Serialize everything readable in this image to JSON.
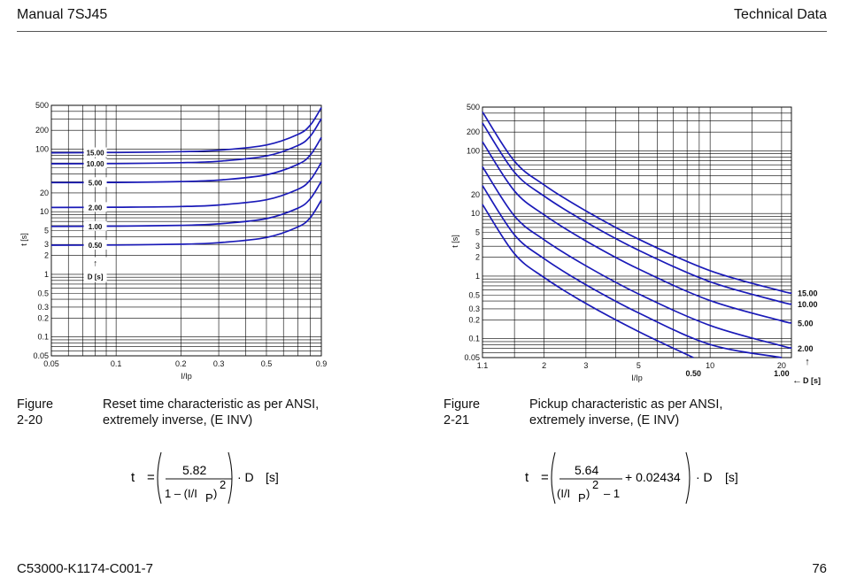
{
  "header": {
    "left": "Manual 7SJ45",
    "right": "Technical Data"
  },
  "footer": {
    "left": "C53000-K1174-C001-7",
    "right": "76"
  },
  "figure_left": {
    "number": "Figure 2-20",
    "caption_line1": "Reset time characteristic as per ANSI,",
    "caption_line2": "extremely inverse, (E INV)",
    "formula": {
      "t": "t",
      "eq": "=",
      "numerator": "5.82",
      "den_a": "1 – (I/I",
      "den_sub": "P",
      "den_close": ")",
      "exp": "2",
      "tail": "· D",
      "unit": "[s]"
    }
  },
  "figure_right": {
    "number": "Figure 2-21",
    "caption_line1": "Pickup characteristic as per ANSI,",
    "caption_line2": "extremely inverse, (E INV)",
    "formula": {
      "t": "t",
      "eq": "=",
      "numerator": "5.64",
      "den_a": "(I/I",
      "den_sub": "P",
      "den_close": ")",
      "exp": "2",
      "den_b": "– 1",
      "plus": "+ 0.02434",
      "tail": "· D",
      "unit": "[s]"
    }
  },
  "chart_data": [
    {
      "type": "line",
      "xlabel": "I/Ip",
      "ylabel": "t [s]",
      "x_scale": "log",
      "y_scale": "log",
      "xlim": [
        0.05,
        0.9
      ],
      "ylim": [
        0.05,
        500
      ],
      "x_ticks": [
        "0.05",
        "0.1",
        "0.2",
        "0.3",
        "0.5",
        "0.9"
      ],
      "y_ticks": [
        "500",
        "200",
        "100",
        "20",
        "10",
        "5",
        "3",
        "2",
        "1",
        "0.5",
        "0.3",
        "0.2",
        "0.1",
        "0.05"
      ],
      "parameter_label": "D [s]",
      "parameter_arrow": "↑",
      "series": [
        {
          "name": "15.00",
          "D": 15.0,
          "x": [
            0.05,
            0.1,
            0.2,
            0.3,
            0.5,
            0.7,
            0.8,
            0.9
          ],
          "y": [
            87.5,
            88.2,
            91.0,
            95.9,
            116.4,
            171.2,
            242.5,
            459.5
          ]
        },
        {
          "name": "10.00",
          "D": 10.0,
          "x": [
            0.05,
            0.1,
            0.2,
            0.3,
            0.5,
            0.7,
            0.8,
            0.9
          ],
          "y": [
            58.4,
            58.8,
            60.6,
            64.0,
            77.6,
            114.1,
            161.7,
            306.3
          ]
        },
        {
          "name": "5.00",
          "D": 5.0,
          "x": [
            0.05,
            0.1,
            0.2,
            0.3,
            0.5,
            0.7,
            0.8,
            0.9
          ],
          "y": [
            29.2,
            29.4,
            30.3,
            32.0,
            38.8,
            57.1,
            80.8,
            153.2
          ]
        },
        {
          "name": "2.00",
          "D": 2.0,
          "x": [
            0.05,
            0.1,
            0.2,
            0.3,
            0.5,
            0.7,
            0.8,
            0.9
          ],
          "y": [
            11.7,
            11.8,
            12.1,
            12.8,
            15.5,
            22.8,
            32.3,
            61.3
          ]
        },
        {
          "name": "1.00",
          "D": 1.0,
          "x": [
            0.05,
            0.1,
            0.2,
            0.3,
            0.5,
            0.7,
            0.8,
            0.9
          ],
          "y": [
            5.83,
            5.88,
            6.06,
            6.4,
            7.76,
            11.4,
            16.2,
            30.6
          ]
        },
        {
          "name": "0.50",
          "D": 0.5,
          "x": [
            0.05,
            0.1,
            0.2,
            0.3,
            0.5,
            0.7,
            0.8,
            0.9
          ],
          "y": [
            2.92,
            2.94,
            3.03,
            3.2,
            3.88,
            5.71,
            8.08,
            15.3
          ]
        }
      ]
    },
    {
      "type": "line",
      "xlabel": "I/Ip",
      "ylabel": "t [s]",
      "x_scale": "log",
      "y_scale": "log",
      "xlim": [
        1.1,
        22
      ],
      "ylim": [
        0.05,
        500
      ],
      "x_ticks": [
        "1.1",
        "2",
        "3",
        "5",
        "10",
        "20"
      ],
      "y_ticks": [
        "500",
        "200",
        "100",
        "20",
        "10",
        "5",
        "3",
        "2",
        "1",
        "0.5",
        "0.3",
        "0.2",
        "0.1",
        "0.05"
      ],
      "parameter_label": "D [s]",
      "parameter_arrow_up": "↑",
      "parameter_arrow_left": "←",
      "series": [
        {
          "name": "15.00",
          "D": 15.0,
          "x": [
            1.1,
            1.5,
            2,
            3,
            5,
            10,
            20,
            22
          ],
          "y": [
            418.8,
            68.5,
            28.6,
            11.0,
            3.89,
            1.22,
            0.577,
            0.543
          ]
        },
        {
          "name": "10.00",
          "D": 10.0,
          "x": [
            1.1,
            1.5,
            2,
            3,
            5,
            10,
            20,
            22
          ],
          "y": [
            279.2,
            45.7,
            19.0,
            7.29,
            2.59,
            0.814,
            0.385,
            0.362
          ]
        },
        {
          "name": "5.00",
          "D": 5.0,
          "x": [
            1.1,
            1.5,
            2,
            3,
            5,
            10,
            20,
            22
          ],
          "y": [
            139.6,
            22.9,
            9.52,
            3.65,
            1.3,
            0.407,
            0.193,
            0.181
          ]
        },
        {
          "name": "2.00",
          "D": 2.0,
          "x": [
            1.1,
            1.5,
            2,
            3,
            5,
            10,
            20,
            22
          ],
          "y": [
            55.8,
            9.14,
            3.81,
            1.46,
            0.519,
            0.163,
            0.077,
            0.072
          ]
        },
        {
          "name": "1.00",
          "D": 1.0,
          "x": [
            1.1,
            1.5,
            2,
            3,
            5,
            10,
            20
          ],
          "y": [
            27.9,
            4.57,
            1.9,
            0.729,
            0.259,
            0.081,
            0.05
          ]
        },
        {
          "name": "0.50",
          "D": 0.5,
          "x": [
            1.1,
            1.5,
            2,
            3,
            5,
            8.5
          ],
          "y": [
            14.0,
            2.28,
            0.952,
            0.365,
            0.13,
            0.05
          ]
        }
      ]
    }
  ],
  "colors": {
    "curve": "#1a1ab8",
    "grid": "#000000",
    "text": "#111111"
  }
}
